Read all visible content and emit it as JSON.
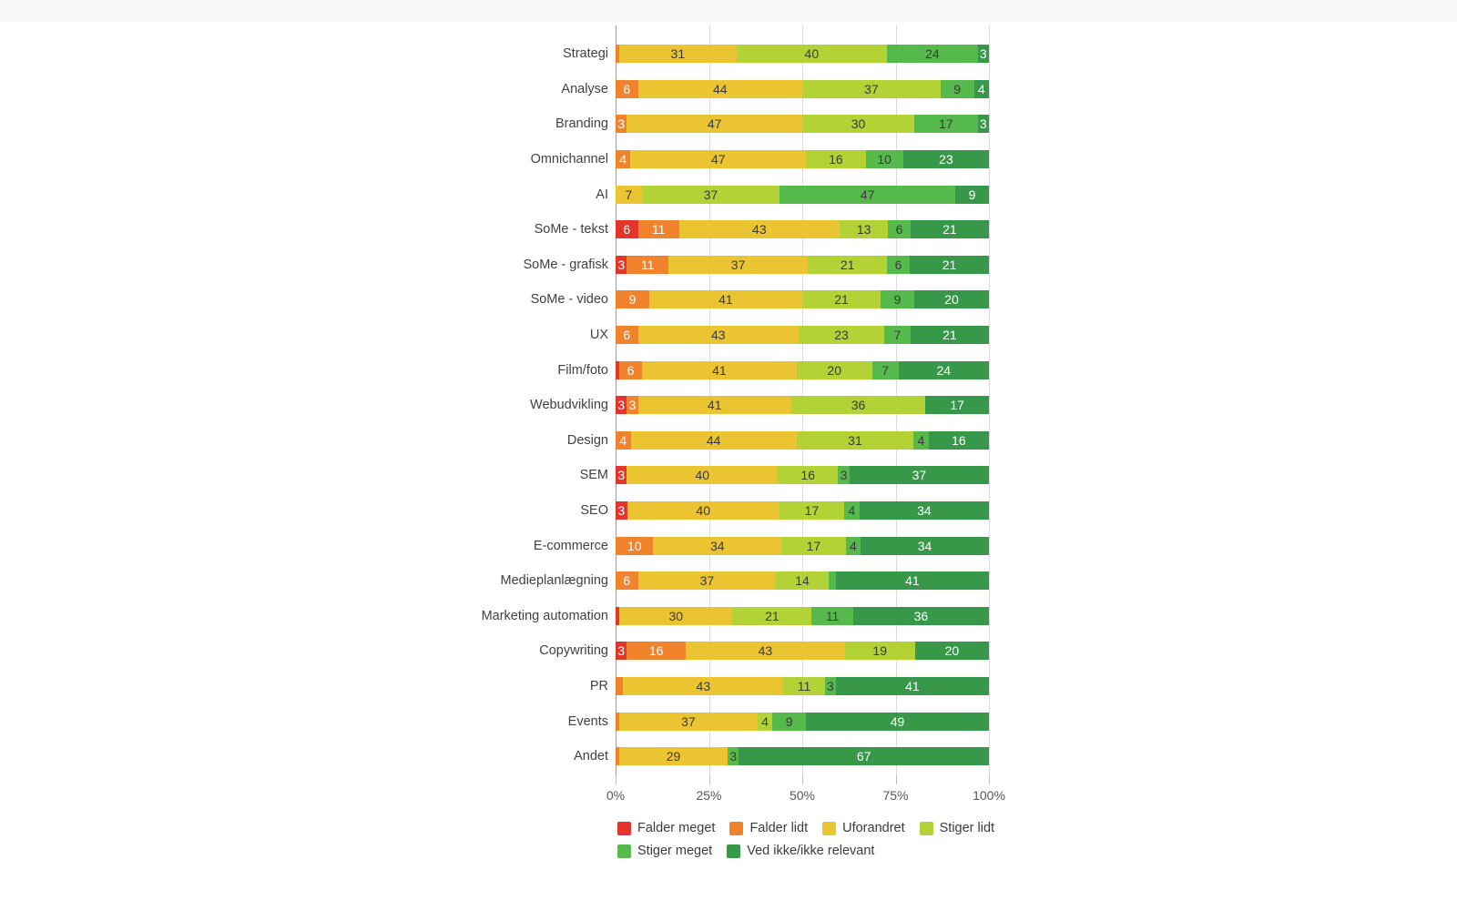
{
  "chart_data": {
    "type": "bar",
    "orientation": "horizontal",
    "stacked": true,
    "unit": "%",
    "title": "",
    "xlabel": "",
    "ylabel": "",
    "xlim": [
      0,
      100
    ],
    "x_tick_labels": [
      "0%",
      "25%",
      "50%",
      "75%",
      "100%"
    ],
    "grid": true,
    "legend_position": "bottom",
    "legend_rows": [
      4,
      2
    ],
    "min_value_for_label": 3,
    "categories": [
      "Strategi",
      "Analyse",
      "Branding",
      "Omnichannel",
      "AI",
      "SoMe - tekst",
      "SoMe - grafisk",
      "SoMe - video",
      "UX",
      "Film/foto",
      "Webudvikling",
      "Design",
      "SEM",
      "SEO",
      "E-commerce",
      "Medieplanlægning",
      "Marketing automation",
      "Copywriting",
      "PR",
      "Events",
      "Andet"
    ],
    "series": [
      {
        "name": "Falder meget",
        "color": "#e2352b",
        "label_color": "#ffffff",
        "values": [
          0,
          0,
          0,
          0,
          0,
          6,
          3,
          0,
          0,
          1,
          3,
          0,
          3,
          3,
          0,
          0,
          1,
          3,
          0,
          0,
          0
        ]
      },
      {
        "name": "Falder lidt",
        "color": "#f0832c",
        "label_color": "#ffffff",
        "values": [
          1,
          6,
          3,
          4,
          0,
          11,
          11,
          9,
          6,
          6,
          3,
          4,
          0,
          0,
          10,
          6,
          0,
          16,
          2,
          1,
          1
        ]
      },
      {
        "name": "Uforandret",
        "color": "#ebc431",
        "label_color": "#3a3a3a",
        "values": [
          31,
          44,
          47,
          47,
          7,
          43,
          37,
          41,
          43,
          41,
          41,
          44,
          40,
          40,
          34,
          37,
          30,
          43,
          43,
          37,
          29
        ]
      },
      {
        "name": "Stiger lidt",
        "color": "#b2d235",
        "label_color": "#3a3a3a",
        "values": [
          40,
          37,
          30,
          16,
          37,
          13,
          21,
          21,
          23,
          20,
          36,
          31,
          16,
          17,
          17,
          14,
          21,
          19,
          11,
          4,
          0
        ]
      },
      {
        "name": "Stiger meget",
        "color": "#55b94b",
        "label_color": "#3a3a3a",
        "values": [
          24,
          9,
          17,
          10,
          47,
          6,
          6,
          9,
          7,
          7,
          0,
          4,
          3,
          4,
          4,
          2,
          11,
          0,
          3,
          9,
          3
        ]
      },
      {
        "name": "Ved ikke/ikke relevant",
        "color": "#38984a",
        "label_color": "#ffffff",
        "values": [
          3,
          4,
          3,
          23,
          9,
          21,
          21,
          20,
          21,
          24,
          17,
          16,
          37,
          34,
          34,
          41,
          36,
          20,
          41,
          49,
          67
        ]
      }
    ]
  }
}
